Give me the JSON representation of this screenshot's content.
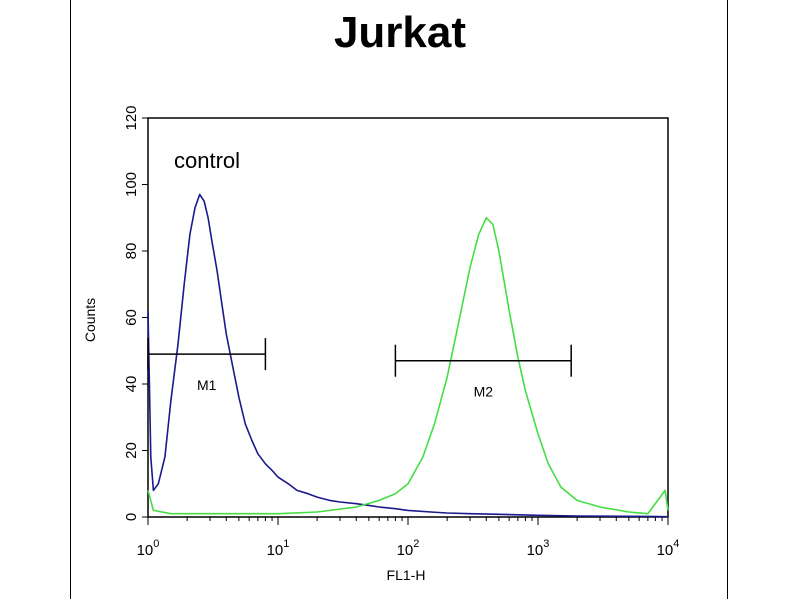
{
  "chart_data": {
    "type": "line",
    "title": "Jurkat",
    "xlabel": "FL1-H",
    "ylabel": "Counts",
    "x_scale": "log",
    "xlim": [
      1,
      10000
    ],
    "ylim": [
      0,
      120
    ],
    "y_ticks": [
      0,
      20,
      40,
      60,
      80,
      100,
      120
    ],
    "x_ticks": [
      {
        "value": 1,
        "base": "10",
        "exp": "0"
      },
      {
        "value": 10,
        "base": "10",
        "exp": "1"
      },
      {
        "value": 100,
        "base": "10",
        "exp": "2"
      },
      {
        "value": 1000,
        "base": "10",
        "exp": "3"
      },
      {
        "value": 10000,
        "base": "10",
        "exp": "4"
      }
    ],
    "grid": false,
    "series": [
      {
        "name": "control",
        "color": "#1a1a8c",
        "x": [
          1.0,
          1.05,
          1.1,
          1.2,
          1.35,
          1.5,
          1.7,
          1.9,
          2.1,
          2.3,
          2.5,
          2.7,
          2.9,
          3.1,
          3.4,
          3.7,
          4.0,
          4.5,
          5.0,
          5.6,
          6.3,
          7.0,
          8.0,
          9.0,
          10,
          12,
          14,
          17,
          20,
          25,
          30,
          40,
          50,
          60,
          80,
          100,
          150,
          200,
          300,
          500,
          1000,
          2000,
          5000,
          10000
        ],
        "y": [
          62,
          18,
          8,
          10,
          18,
          35,
          52,
          70,
          85,
          93,
          97,
          95,
          90,
          83,
          74,
          64,
          55,
          45,
          36,
          28,
          23,
          19,
          16,
          14,
          12,
          10,
          8,
          7,
          6,
          5,
          4.5,
          4,
          3.5,
          3,
          2.5,
          2,
          1.5,
          1.2,
          1,
          0.8,
          0.5,
          0.3,
          0.2,
          0.1
        ]
      },
      {
        "name": "",
        "color": "#44dd44",
        "x": [
          1.0,
          1.1,
          1.5,
          2,
          3,
          5,
          10,
          20,
          40,
          60,
          80,
          100,
          130,
          160,
          200,
          250,
          300,
          350,
          400,
          450,
          500,
          600,
          700,
          800,
          1000,
          1200,
          1500,
          2000,
          3000,
          5000,
          7000,
          9500,
          10000
        ],
        "y": [
          8,
          2,
          1,
          1,
          1,
          1,
          1,
          1.5,
          3,
          5,
          7,
          10,
          18,
          28,
          42,
          60,
          75,
          85,
          90,
          88,
          80,
          62,
          48,
          38,
          25,
          16,
          9,
          5,
          3,
          1.5,
          1,
          8,
          2
        ]
      }
    ],
    "markers": [
      {
        "label": "M1",
        "x_start": 1.0,
        "x_end": 8.0,
        "y": 49
      },
      {
        "label": "M2",
        "x_start": 80,
        "x_end": 1800,
        "y": 47
      }
    ]
  }
}
